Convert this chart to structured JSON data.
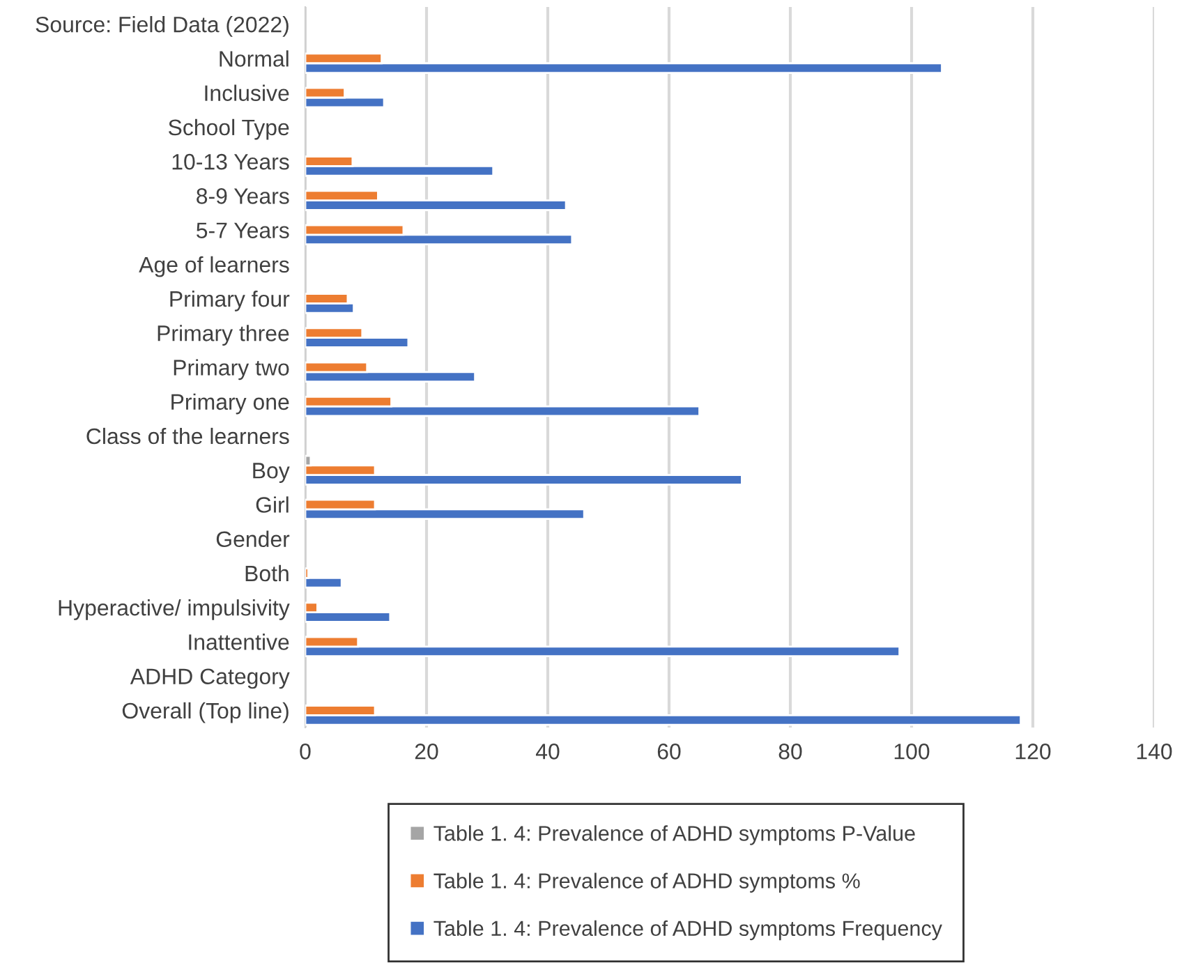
{
  "chart_data": {
    "type": "bar",
    "orientation": "horizontal",
    "categories": [
      "Source: Field Data (2022)",
      "Normal",
      "Inclusive",
      "School Type",
      "10-13 Years",
      "8-9 Years",
      "5-7 Years",
      "Age of learners",
      "Primary four",
      "Primary three",
      "Primary two",
      "Primary one",
      "Class of the learners",
      "Boy",
      "Girl",
      "Gender",
      "Both",
      "Hyperactive/ impulsivity",
      "Inattentive",
      "ADHD Category",
      "Overall (Top line)"
    ],
    "series": [
      {
        "name": "Table 1. 4: Prevalence of ADHD symptoms Frequency",
        "color": "#4472c4",
        "values": [
          null,
          105,
          13,
          null,
          31,
          43,
          44,
          null,
          8,
          17,
          28,
          65,
          null,
          72,
          46,
          null,
          6,
          14,
          98,
          null,
          118
        ]
      },
      {
        "name": "Table 1. 4: Prevalence of ADHD symptoms %",
        "color": "#ed7d31",
        "values": [
          null,
          12.6,
          6.5,
          null,
          7.8,
          12,
          16.2,
          null,
          7,
          9.4,
          10.2,
          14.2,
          null,
          11.5,
          11.5,
          null,
          0.5,
          2,
          8.7,
          null,
          11.5
        ]
      },
      {
        "name": "Table 1. 4: Prevalence of ADHD symptoms P-Value",
        "color": "#a5a5a5",
        "values": [
          null,
          null,
          null,
          null,
          null,
          null,
          null,
          null,
          null,
          null,
          null,
          null,
          null,
          0.9,
          null,
          null,
          null,
          null,
          null,
          null,
          null
        ]
      }
    ],
    "xlim": [
      0,
      140
    ],
    "xticks": [
      0,
      20,
      40,
      60,
      80,
      100,
      120,
      140
    ],
    "grid": "x",
    "legend": "bottom"
  }
}
